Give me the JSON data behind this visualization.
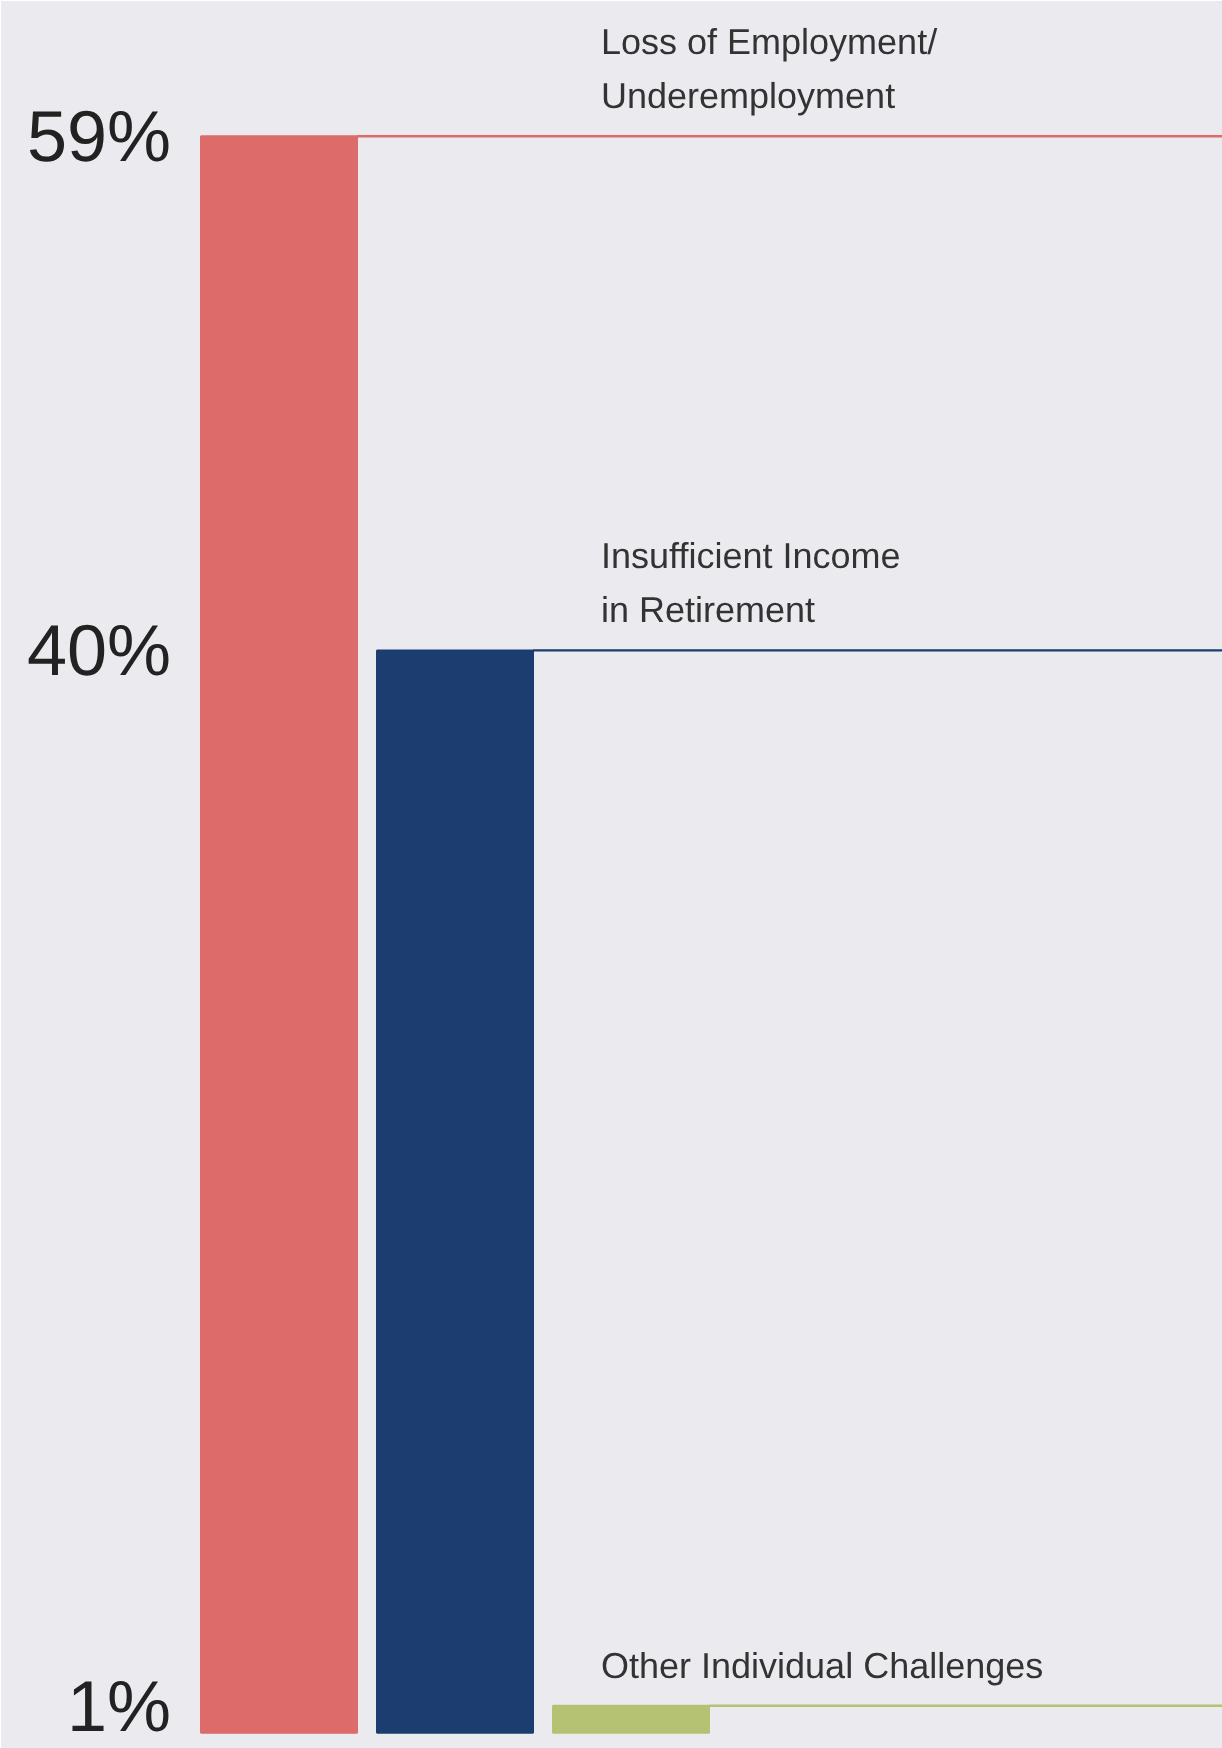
{
  "chart_data": {
    "type": "bar",
    "categories": [
      null,
      null,
      null
    ],
    "values": [
      59,
      40,
      1
    ],
    "colors": [
      "#dc6b6a",
      "#1b3d6f",
      "#b5c173"
    ],
    "ylim": [
      -0.6,
      64
    ],
    "yticks": [
      {
        "value": 59,
        "label": "59%"
      },
      {
        "value": 40,
        "label": "40%"
      },
      {
        "value": 1,
        "label": "1%"
      }
    ],
    "ref_lines": [
      {
        "axis": "y",
        "value": 59,
        "label": "Loss of Employment/\nUnderemployment",
        "color": "#dc6b6a"
      },
      {
        "axis": "y",
        "value": 40,
        "label": "Insufficient Income\nin Retirement",
        "color": "#1b3d6f"
      },
      {
        "axis": "y",
        "value": 1,
        "label": "Other Individual Challenges",
        "color": "#b5c173"
      }
    ],
    "grid": false
  }
}
